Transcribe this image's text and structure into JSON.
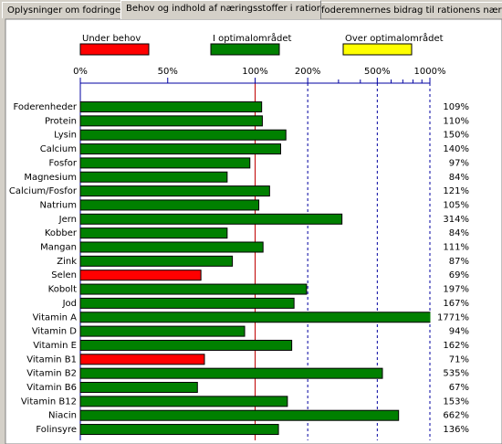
{
  "tabs": [
    "Oplysninger om fodringen",
    "Behov og indhold af næringsstoffer i rationen",
    "foderemnernes bidrag til rationens næringsin"
  ],
  "chart_data": {
    "type": "bar",
    "orientation": "horizontal",
    "xscale": "linear-then-log",
    "log_from": 100,
    "legend": [
      {
        "name": "Under behov",
        "color": "#ff0000"
      },
      {
        "name": "I optimalområdet",
        "color": "#008000"
      },
      {
        "name": "Over optimalområdet",
        "color": "#ffff00"
      }
    ],
    "categories": [
      "Foderenheder",
      "Protein",
      "Lysin",
      "Calcium",
      "Fosfor",
      "Magnesium",
      "Calcium/Fosfor",
      "Natrium",
      "Jern",
      "Kobber",
      "Mangan",
      "Zink",
      "Selen",
      "Kobolt",
      "Jod",
      "Vitamin A",
      "Vitamin D",
      "Vitamin E",
      "Vitamin B1",
      "Vitamin B2",
      "Vitamin B6",
      "Vitamin B12",
      "Niacin",
      "Folinsyre"
    ],
    "values": [
      109,
      110,
      150,
      140,
      97,
      84,
      121,
      105,
      314,
      84,
      111,
      87,
      69,
      197,
      167,
      1771,
      94,
      162,
      71,
      535,
      67,
      153,
      662,
      136
    ],
    "value_labels": [
      "109%",
      "110%",
      "150%",
      "140%",
      "97%",
      "84%",
      "121%",
      "105%",
      "314%",
      "84%",
      "111%",
      "87%",
      "69%",
      "197%",
      "167%",
      "1771%",
      "94%",
      "162%",
      "71%",
      "535%",
      "67%",
      "153%",
      "662%",
      "136%"
    ],
    "colors": [
      "#008000",
      "#008000",
      "#008000",
      "#008000",
      "#008000",
      "#008000",
      "#008000",
      "#008000",
      "#008000",
      "#008000",
      "#008000",
      "#008000",
      "#ff0000",
      "#008000",
      "#008000",
      "#008000",
      "#008000",
      "#008000",
      "#ff0000",
      "#008000",
      "#008000",
      "#008000",
      "#008000",
      "#008000"
    ],
    "xlim": [
      0,
      1000
    ],
    "xticks": [
      {
        "value": 0,
        "label": "0%"
      },
      {
        "value": 50,
        "label": "50%"
      },
      {
        "value": 100,
        "label": "100%"
      },
      {
        "value": 200,
        "label": "200%"
      },
      {
        "value": 500,
        "label": "500%"
      },
      {
        "value": 1000,
        "label": "1000%"
      }
    ],
    "minor_xticks": [
      300,
      400,
      600,
      700,
      800,
      900
    ],
    "grid_xticks": [
      200,
      500,
      1000
    ],
    "grid_color": "#0000a0",
    "reference_line": 100,
    "reference_color": "#c00000"
  }
}
